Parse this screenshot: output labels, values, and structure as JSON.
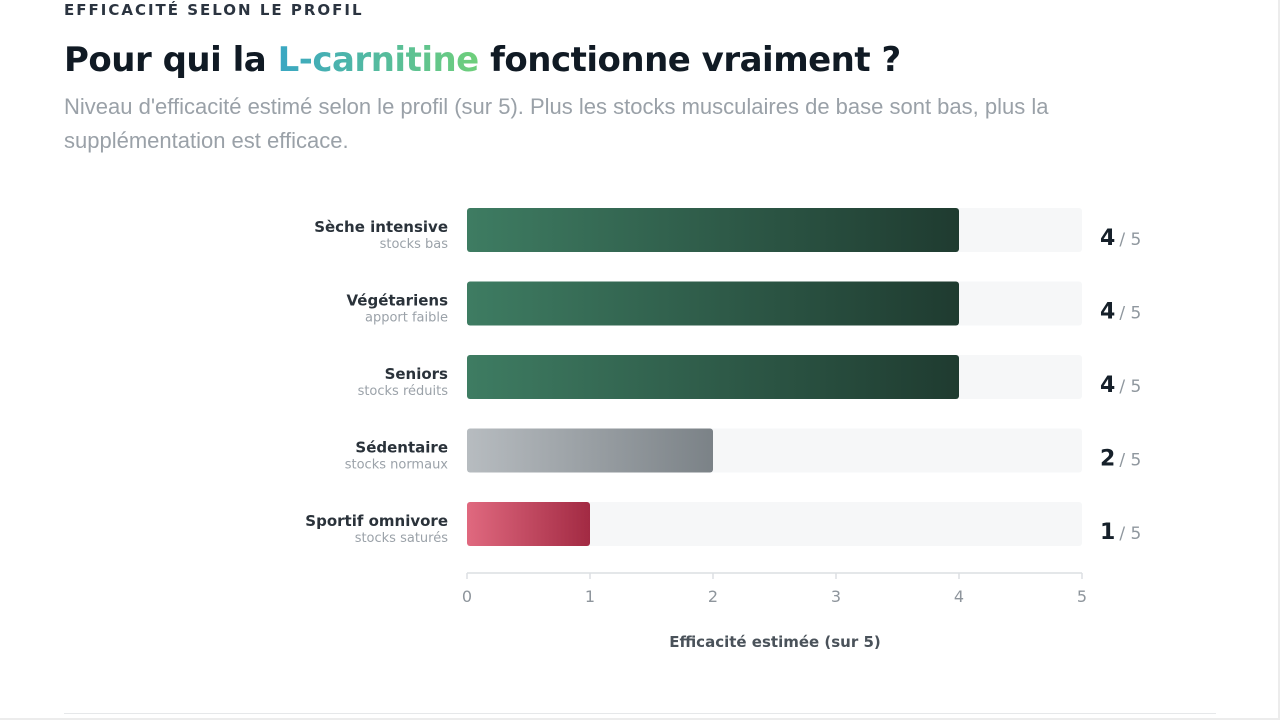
{
  "header": {
    "eyebrow": "EFFICACITÉ SELON LE PROFIL",
    "title_before": "Pour qui la ",
    "title_accent": "L-carnitine",
    "title_after": " fonctionne vraiment ?",
    "subtitle": "Niveau d'efficacité estimé selon le profil (sur 5). Plus les stocks musculaires de base sont bas, plus la supplémentation est efficace."
  },
  "chart_data": {
    "type": "bar",
    "orientation": "horizontal",
    "xlabel": "Efficacité estimée (sur 5)",
    "xlim": [
      0,
      5
    ],
    "xticks": [
      0,
      1,
      2,
      3,
      4,
      5
    ],
    "value_suffix": "/ 5",
    "categories": [
      {
        "label": "Sèche intensive",
        "sublabel": "stocks bas",
        "value": 4,
        "color_start": "#3e7c62",
        "color_end": "#1f3b30"
      },
      {
        "label": "Végétariens",
        "sublabel": "apport faible",
        "value": 4,
        "color_start": "#3e7c62",
        "color_end": "#1f3b30"
      },
      {
        "label": "Seniors",
        "sublabel": "stocks réduits",
        "value": 4,
        "color_start": "#3e7c62",
        "color_end": "#1f3b30"
      },
      {
        "label": "Sédentaire",
        "sublabel": "stocks normaux",
        "value": 2,
        "color_start": "#b7bcc0",
        "color_end": "#7b8287"
      },
      {
        "label": "Sportif omnivore",
        "sublabel": "stocks saturés",
        "value": 1,
        "color_start": "#e0697f",
        "color_end": "#a22a43"
      }
    ]
  }
}
